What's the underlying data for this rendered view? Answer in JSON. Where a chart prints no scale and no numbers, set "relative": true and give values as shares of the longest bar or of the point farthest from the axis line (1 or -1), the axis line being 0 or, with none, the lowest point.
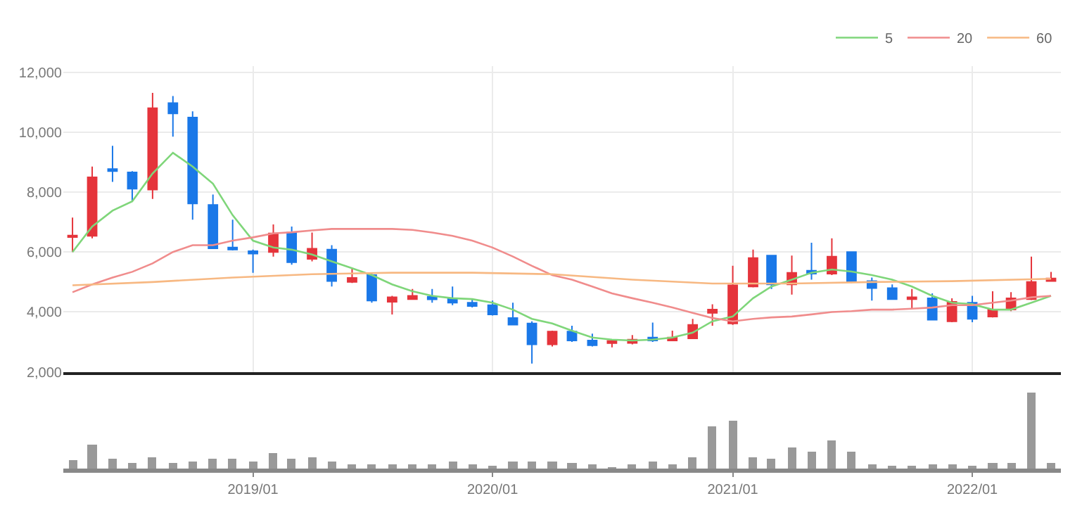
{
  "chart_data": [
    {
      "type": "candlestick",
      "x": [
        "2018-04",
        "2018-05",
        "2018-06",
        "2018-07",
        "2018-08",
        "2018-09",
        "2018-10",
        "2018-11",
        "2018-12",
        "2019-01",
        "2019-02",
        "2019-03",
        "2019-04",
        "2019-05",
        "2019-06",
        "2019-07",
        "2019-08",
        "2019-09",
        "2019-10",
        "2019-11",
        "2019-12",
        "2020-01",
        "2020-02",
        "2020-03",
        "2020-04",
        "2020-05",
        "2020-06",
        "2020-07",
        "2020-08",
        "2020-09",
        "2020-10",
        "2020-11",
        "2020-12",
        "2021-01",
        "2021-02",
        "2021-03",
        "2021-04",
        "2021-05",
        "2021-06",
        "2021-07",
        "2021-08",
        "2021-09",
        "2021-10",
        "2021-11",
        "2021-12",
        "2022-01",
        "2022-02",
        "2022-03",
        "2022-04",
        "2022-05"
      ],
      "ohlc": [
        [
          6500,
          7150,
          6000,
          6550
        ],
        [
          6540,
          8850,
          6460,
          8490
        ],
        [
          8770,
          9540,
          8340,
          8700
        ],
        [
          8660,
          8700,
          7690,
          8110
        ],
        [
          8080,
          11310,
          7770,
          10800
        ],
        [
          10970,
          11200,
          9850,
          10620
        ],
        [
          10490,
          10690,
          7080,
          7620
        ],
        [
          7570,
          7920,
          6100,
          6120
        ],
        [
          6150,
          7080,
          6050,
          6080
        ],
        [
          6030,
          6080,
          5310,
          5950
        ],
        [
          6000,
          6920,
          5850,
          6620
        ],
        [
          6650,
          6850,
          5580,
          5660
        ],
        [
          5770,
          6650,
          5690,
          6110
        ],
        [
          6080,
          6230,
          4850,
          5030
        ],
        [
          5000,
          5460,
          4970,
          5140
        ],
        [
          5230,
          5310,
          4310,
          4380
        ],
        [
          4340,
          4540,
          3920,
          4490
        ],
        [
          4430,
          4770,
          4430,
          4540
        ],
        [
          4510,
          4770,
          4310,
          4420
        ],
        [
          4460,
          4850,
          4230,
          4310
        ],
        [
          4310,
          4460,
          4150,
          4200
        ],
        [
          4230,
          4380,
          3880,
          3920
        ],
        [
          3800,
          4310,
          3580,
          3580
        ],
        [
          3620,
          3690,
          2280,
          2920
        ],
        [
          2920,
          3380,
          2850,
          3350
        ],
        [
          3350,
          3540,
          3000,
          3050
        ],
        [
          3050,
          3280,
          2850,
          2890
        ],
        [
          2960,
          3080,
          2820,
          3040
        ],
        [
          2970,
          3230,
          2920,
          3080
        ],
        [
          3150,
          3650,
          3000,
          3050
        ],
        [
          3050,
          3380,
          3050,
          3150
        ],
        [
          3120,
          3770,
          3120,
          3570
        ],
        [
          3970,
          4260,
          3540,
          4080
        ],
        [
          3620,
          5540,
          3570,
          4890
        ],
        [
          4850,
          6080,
          4820,
          5800
        ],
        [
          5880,
          5880,
          4770,
          4920
        ],
        [
          4920,
          5880,
          4580,
          5310
        ],
        [
          5380,
          6310,
          5080,
          5280
        ],
        [
          5280,
          6460,
          5230,
          5850
        ],
        [
          6000,
          6000,
          4970,
          5000
        ],
        [
          5030,
          5150,
          4380,
          4800
        ],
        [
          4800,
          4920,
          4430,
          4430
        ],
        [
          4430,
          4770,
          4120,
          4490
        ],
        [
          4460,
          4620,
          3740,
          3740
        ],
        [
          3690,
          4460,
          3660,
          4340
        ],
        [
          4310,
          4540,
          3660,
          3770
        ],
        [
          3850,
          4690,
          3820,
          4080
        ],
        [
          4080,
          4660,
          4030,
          4460
        ],
        [
          4430,
          5850,
          4400,
          5000
        ],
        [
          5030,
          5340,
          5030,
          5120
        ]
      ],
      "colors": [
        "#e5343b",
        "#e5343b",
        "#1a78e8",
        "#1a78e8",
        "#e5343b",
        "#1a78e8",
        "#1a78e8",
        "#1a78e8",
        "#1a78e8",
        "#1a78e8",
        "#e5343b",
        "#1a78e8",
        "#e5343b",
        "#1a78e8",
        "#e5343b",
        "#1a78e8",
        "#e5343b",
        "#e5343b",
        "#1a78e8",
        "#1a78e8",
        "#1a78e8",
        "#1a78e8",
        "#1a78e8",
        "#1a78e8",
        "#e5343b",
        "#1a78e8",
        "#1a78e8",
        "#e5343b",
        "#e5343b",
        "#1a78e8",
        "#e5343b",
        "#e5343b",
        "#e5343b",
        "#e5343b",
        "#e5343b",
        "#1a78e8",
        "#e5343b",
        "#1a78e8",
        "#e5343b",
        "#1a78e8",
        "#1a78e8",
        "#1a78e8",
        "#e5343b",
        "#1a78e8",
        "#e5343b",
        "#1a78e8",
        "#e5343b",
        "#e5343b",
        "#e5343b",
        "#e5343b"
      ],
      "series": [
        {
          "type": "line",
          "name": "5",
          "color": "#7fd67a",
          "values": [
            6000,
            6850,
            7380,
            7690,
            8620,
            9310,
            8850,
            8280,
            7230,
            6380,
            6150,
            6080,
            5920,
            5690,
            5460,
            5230,
            4920,
            4690,
            4540,
            4460,
            4430,
            4310,
            4080,
            3770,
            3620,
            3380,
            3150,
            3080,
            3050,
            3080,
            3150,
            3310,
            3690,
            3850,
            4460,
            4850,
            5080,
            5310,
            5420,
            5350,
            5230,
            5080,
            4850,
            4540,
            4310,
            4260,
            4080,
            4080,
            4310,
            4540
          ]
        },
        {
          "type": "line",
          "name": "20",
          "color": "#f08c8c",
          "values": [
            4660,
            4920,
            5150,
            5340,
            5620,
            6000,
            6230,
            6230,
            6380,
            6490,
            6620,
            6660,
            6720,
            6770,
            6770,
            6770,
            6770,
            6740,
            6650,
            6540,
            6380,
            6150,
            5850,
            5540,
            5230,
            5080,
            4850,
            4620,
            4460,
            4310,
            4150,
            3970,
            3800,
            3690,
            3770,
            3820,
            3850,
            3920,
            4000,
            4030,
            4080,
            4080,
            4110,
            4150,
            4230,
            4230,
            4310,
            4380,
            4490,
            4540
          ]
        },
        {
          "type": "line",
          "name": "60",
          "color": "#f7b882",
          "x": [
            "2018-04",
            "2018-08",
            "2018-12",
            "2019-04",
            "2019-08",
            "2019-12",
            "2020-04",
            "2020-08",
            "2020-12",
            "2021-04",
            "2021-08",
            "2021-12",
            "2022-05"
          ],
          "values": [
            4890,
            5000,
            5150,
            5260,
            5310,
            5310,
            5260,
            5080,
            4950,
            4950,
            5000,
            5030,
            5110
          ]
        }
      ],
      "xlim": [
        "2018-03-18",
        "2022-05-16"
      ],
      "xticks": [
        {
          "value": "2019-01",
          "label": null
        },
        {
          "value": "2020-01",
          "label": null
        },
        {
          "value": "2021-01",
          "label": null
        },
        {
          "value": "2022-01",
          "label": null
        }
      ],
      "ylim": [
        2000,
        12200
      ],
      "yticks": [
        {
          "value": 2000,
          "label": "2,000"
        },
        {
          "value": 4000,
          "label": "4,000"
        },
        {
          "value": 6000,
          "label": "6,000"
        },
        {
          "value": 8000,
          "label": "8,000"
        },
        {
          "value": 10000,
          "label": "10,000"
        },
        {
          "value": 12000,
          "label": "12,000"
        }
      ],
      "grid": true,
      "legend": "top right",
      "tick_labels": "y"
    },
    {
      "type": "bar",
      "relative": true,
      "color": "#999999",
      "x": [
        "2018-04",
        "2018-05",
        "2018-06",
        "2018-07",
        "2018-08",
        "2018-09",
        "2018-10",
        "2018-11",
        "2018-12",
        "2019-01",
        "2019-02",
        "2019-03",
        "2019-04",
        "2019-05",
        "2019-06",
        "2019-07",
        "2019-08",
        "2019-09",
        "2019-10",
        "2019-11",
        "2019-12",
        "2020-01",
        "2020-02",
        "2020-03",
        "2020-04",
        "2020-05",
        "2020-06",
        "2020-07",
        "2020-08",
        "2020-09",
        "2020-10",
        "2020-11",
        "2020-12",
        "2021-01",
        "2021-02",
        "2021-03",
        "2021-04",
        "2021-05",
        "2021-06",
        "2021-07",
        "2021-08",
        "2021-09",
        "2021-10",
        "2021-11",
        "2021-12",
        "2022-01",
        "2022-02",
        "2022-03",
        "2022-04",
        "2022-05"
      ],
      "values": [
        0.11,
        0.31,
        0.14,
        0.07,
        0.15,
        0.07,
        0.09,
        0.14,
        0.13,
        0.1,
        0.2,
        0.14,
        0.15,
        0.09,
        0.05,
        0.05,
        0.05,
        0.05,
        0.05,
        0.1,
        0.05,
        0.04,
        0.1,
        0.09,
        0.09,
        0.07,
        0.06,
        0.03,
        0.06,
        0.1,
        0.06,
        0.16,
        0.56,
        0.63,
        0.16,
        0.13,
        0.28,
        0.22,
        0.38,
        0.22,
        0.06,
        0.04,
        0.04,
        0.05,
        0.05,
        0.04,
        0.07,
        0.07,
        1,
        0.07
      ],
      "xlim": [
        "2018-03-18",
        "2022-05-16"
      ],
      "xticks": [
        {
          "value": "2019-01",
          "label": "2019/01"
        },
        {
          "value": "2020-01",
          "label": "2020/01"
        },
        {
          "value": "2021-01",
          "label": "2021/01"
        },
        {
          "value": "2022-01",
          "label": "2022/01"
        }
      ],
      "tick_labels": "x"
    }
  ]
}
